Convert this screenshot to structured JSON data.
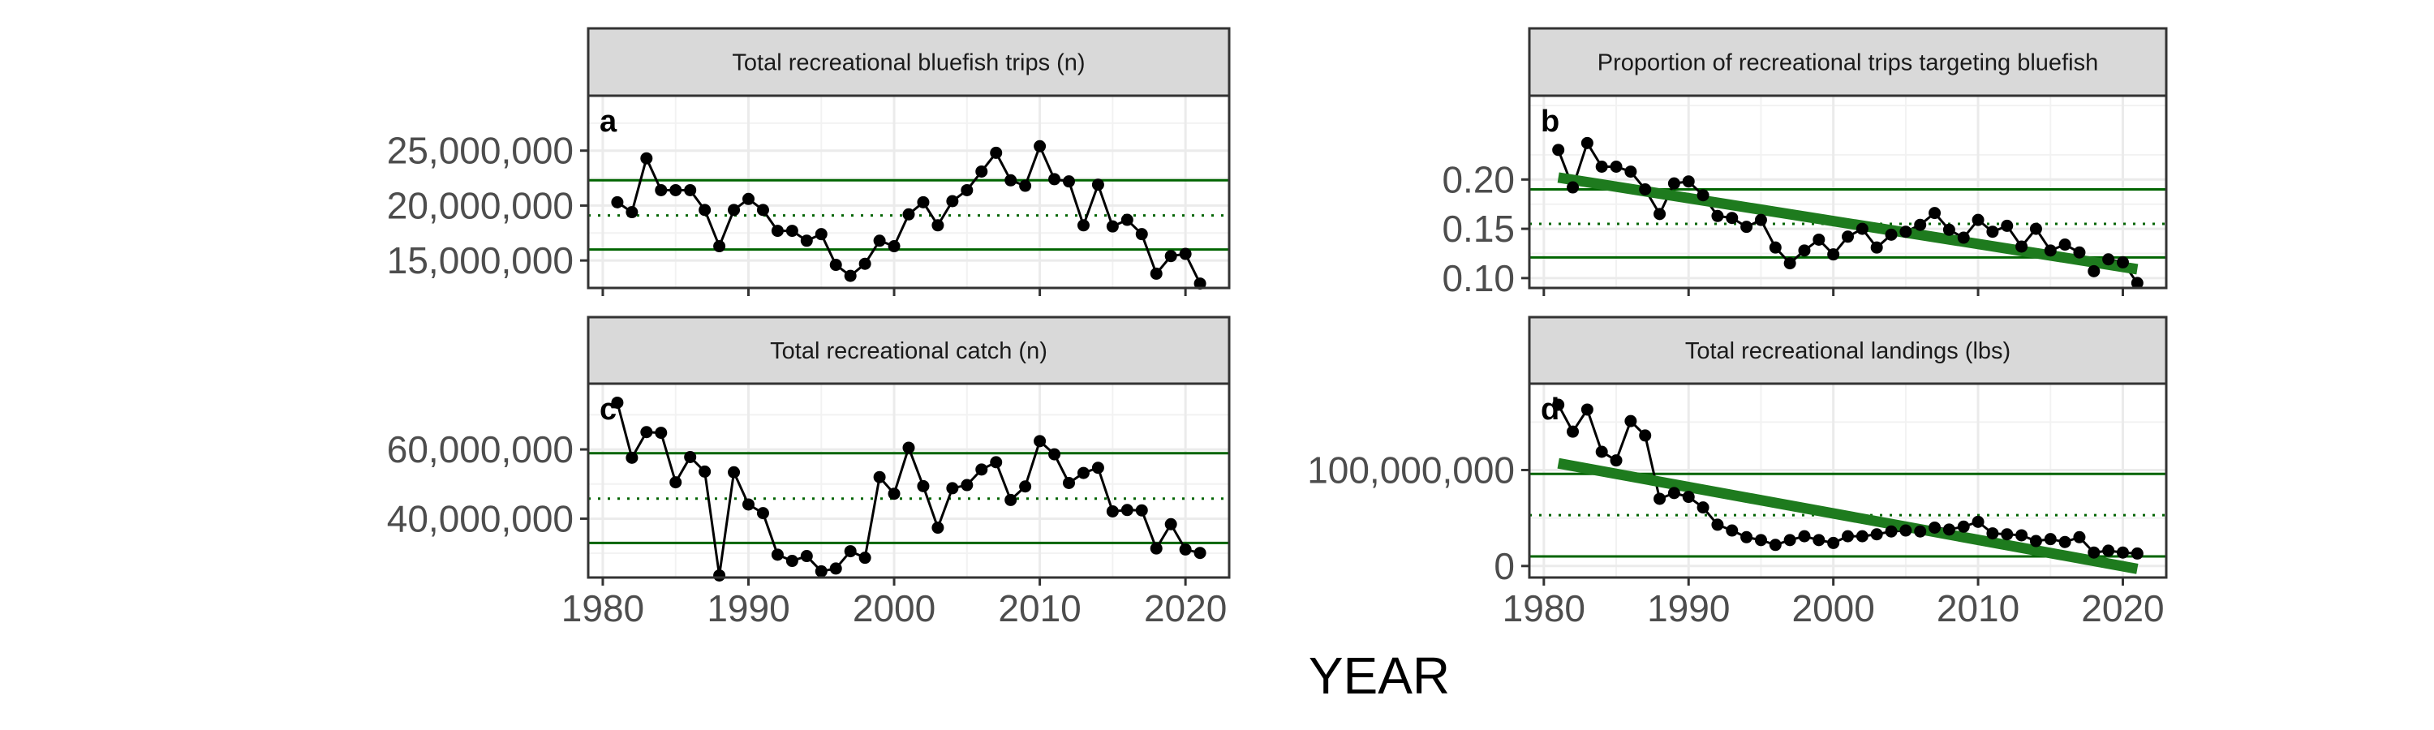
{
  "figure": {
    "xlabel": "YEAR"
  },
  "colors": {
    "ref_line": "#006400",
    "trend": "#1e7b1e",
    "points": "#000000",
    "grid": "#ebebeb",
    "strip_bg": "#d9d9d9"
  },
  "chart_data": [
    {
      "id": "a",
      "type": "line",
      "title": "Total recreational bluefish trips (n)",
      "tag": "a",
      "xlim": [
        1979,
        2023
      ],
      "ylim": [
        12500000,
        30000000
      ],
      "x_ticks": [
        1980,
        1990,
        2000,
        2010,
        2020
      ],
      "x_tick_labels": [
        "1980",
        "1990",
        "2000",
        "2010",
        "2020"
      ],
      "show_x_ticks": false,
      "y_ticks": [
        15000000,
        20000000,
        25000000
      ],
      "y_tick_labels": [
        "15,000,000",
        "20,000,000",
        "25,000,000"
      ],
      "x": [
        1981,
        1982,
        1983,
        1984,
        1985,
        1986,
        1987,
        1988,
        1989,
        1990,
        1991,
        1992,
        1993,
        1994,
        1995,
        1996,
        1997,
        1998,
        1999,
        2000,
        2001,
        2002,
        2003,
        2004,
        2005,
        2006,
        2007,
        2008,
        2009,
        2010,
        2011,
        2012,
        2013,
        2014,
        2015,
        2016,
        2017,
        2018,
        2019,
        2020,
        2021
      ],
      "y": [
        20300000,
        19400000,
        24300000,
        21400000,
        21400000,
        21400000,
        19600000,
        16300000,
        19600000,
        20600000,
        19600000,
        17700000,
        17700000,
        16800000,
        17400000,
        14600000,
        13600000,
        14700000,
        16800000,
        16300000,
        19200000,
        20300000,
        18200000,
        20400000,
        21400000,
        23100000,
        24800000,
        22300000,
        21800000,
        25400000,
        22400000,
        22200000,
        18200000,
        21900000,
        18100000,
        18700000,
        17400000,
        13800000,
        15400000,
        15600000,
        12900000
      ],
      "hlines_solid": [
        22300000,
        16000000
      ],
      "hline_dotted": 19100000,
      "trend": null
    },
    {
      "id": "b",
      "type": "line",
      "title": "Proportion of recreational trips targeting bluefish",
      "tag": "b",
      "xlim": [
        1979,
        2023
      ],
      "ylim": [
        0.09,
        0.285
      ],
      "x_ticks": [
        1980,
        1990,
        2000,
        2010,
        2020
      ],
      "x_tick_labels": [
        "1980",
        "1990",
        "2000",
        "2010",
        "2020"
      ],
      "show_x_ticks": false,
      "y_ticks": [
        0.1,
        0.15,
        0.2
      ],
      "y_tick_labels": [
        "0.10",
        "0.15",
        "0.20"
      ],
      "x": [
        1981,
        1982,
        1983,
        1984,
        1985,
        1986,
        1987,
        1988,
        1989,
        1990,
        1991,
        1992,
        1993,
        1994,
        1995,
        1996,
        1997,
        1998,
        1999,
        2000,
        2001,
        2002,
        2003,
        2004,
        2005,
        2006,
        2007,
        2008,
        2009,
        2010,
        2011,
        2012,
        2013,
        2014,
        2015,
        2016,
        2017,
        2018,
        2019,
        2020,
        2021
      ],
      "y": [
        0.23,
        0.192,
        0.237,
        0.213,
        0.213,
        0.208,
        0.19,
        0.165,
        0.196,
        0.198,
        0.184,
        0.163,
        0.161,
        0.152,
        0.159,
        0.131,
        0.115,
        0.128,
        0.139,
        0.124,
        0.142,
        0.15,
        0.131,
        0.144,
        0.147,
        0.154,
        0.166,
        0.149,
        0.141,
        0.159,
        0.147,
        0.153,
        0.132,
        0.15,
        0.128,
        0.134,
        0.126,
        0.107,
        0.119,
        0.116,
        0.095
      ],
      "hlines_solid": [
        0.19,
        0.121
      ],
      "hline_dotted": 0.155,
      "trend": {
        "x": [
          1981,
          2021
        ],
        "y": [
          0.202,
          0.109
        ]
      }
    },
    {
      "id": "c",
      "type": "line",
      "title": "Total recreational catch (n)",
      "tag": "c",
      "xlim": [
        1979,
        2023
      ],
      "ylim": [
        23000000,
        79000000
      ],
      "x_ticks": [
        1980,
        1990,
        2000,
        2010,
        2020
      ],
      "x_tick_labels": [
        "1980",
        "1990",
        "2000",
        "2010",
        "2020"
      ],
      "show_x_ticks": true,
      "y_ticks": [
        40000000,
        60000000
      ],
      "y_tick_labels": [
        "40,000,000",
        "60,000,000"
      ],
      "x": [
        1981,
        1982,
        1983,
        1984,
        1985,
        1986,
        1987,
        1988,
        1989,
        1990,
        1991,
        1992,
        1993,
        1994,
        1995,
        1996,
        1997,
        1998,
        1999,
        2000,
        2001,
        2002,
        2003,
        2004,
        2005,
        2006,
        2007,
        2008,
        2009,
        2010,
        2011,
        2012,
        2013,
        2014,
        2015,
        2016,
        2017,
        2018,
        2019,
        2020,
        2021
      ],
      "y": [
        73500000,
        57600000,
        65000000,
        64800000,
        50500000,
        57800000,
        53600000,
        23600000,
        53400000,
        44100000,
        41600000,
        29600000,
        27800000,
        29200000,
        24800000,
        25600000,
        30600000,
        28700000,
        52000000,
        47200000,
        60500000,
        49400000,
        37400000,
        48800000,
        49700000,
        54200000,
        56300000,
        45400000,
        49300000,
        62400000,
        58600000,
        50300000,
        53200000,
        54700000,
        42100000,
        42500000,
        42400000,
        31400000,
        38400000,
        31100000,
        30100000
      ],
      "hlines_solid": [
        58900000,
        33000000
      ],
      "hline_dotted": 45800000,
      "trend": null
    },
    {
      "id": "d",
      "type": "line",
      "title": "Total recreational landings (lbs)",
      "tag": "d",
      "xlim": [
        1979,
        2023
      ],
      "ylim": [
        -12000000,
        190000000
      ],
      "x_ticks": [
        1980,
        1990,
        2000,
        2010,
        2020
      ],
      "x_tick_labels": [
        "1980",
        "1990",
        "2000",
        "2010",
        "2020"
      ],
      "show_x_ticks": true,
      "y_ticks": [
        0,
        100000000
      ],
      "y_tick_labels": [
        "0",
        "100,000,000"
      ],
      "x": [
        1981,
        1982,
        1983,
        1984,
        1985,
        1986,
        1987,
        1988,
        1989,
        1990,
        1991,
        1992,
        1993,
        1994,
        1995,
        1996,
        1997,
        1998,
        1999,
        2000,
        2001,
        2002,
        2003,
        2004,
        2005,
        2006,
        2007,
        2008,
        2009,
        2010,
        2011,
        2012,
        2013,
        2014,
        2015,
        2016,
        2017,
        2018,
        2019,
        2020,
        2021
      ],
      "y": [
        168000000,
        140000000,
        163000000,
        119000000,
        110000000,
        151000000,
        136000000,
        70000000,
        76000000,
        72000000,
        61000000,
        43000000,
        37000000,
        30000000,
        27000000,
        22000000,
        27000000,
        31000000,
        27000000,
        24000000,
        31000000,
        31000000,
        33000000,
        36000000,
        37000000,
        36000000,
        40000000,
        38000000,
        41000000,
        46000000,
        34000000,
        33000000,
        32000000,
        26000000,
        28000000,
        25000000,
        30000000,
        14000000,
        16000000,
        14000000,
        13000000
      ],
      "hlines_solid": [
        96000000,
        10000000
      ],
      "hline_dotted": 53000000,
      "trend": {
        "x": [
          1981,
          2021
        ],
        "y": [
          107000000,
          -3000000
        ]
      }
    }
  ]
}
